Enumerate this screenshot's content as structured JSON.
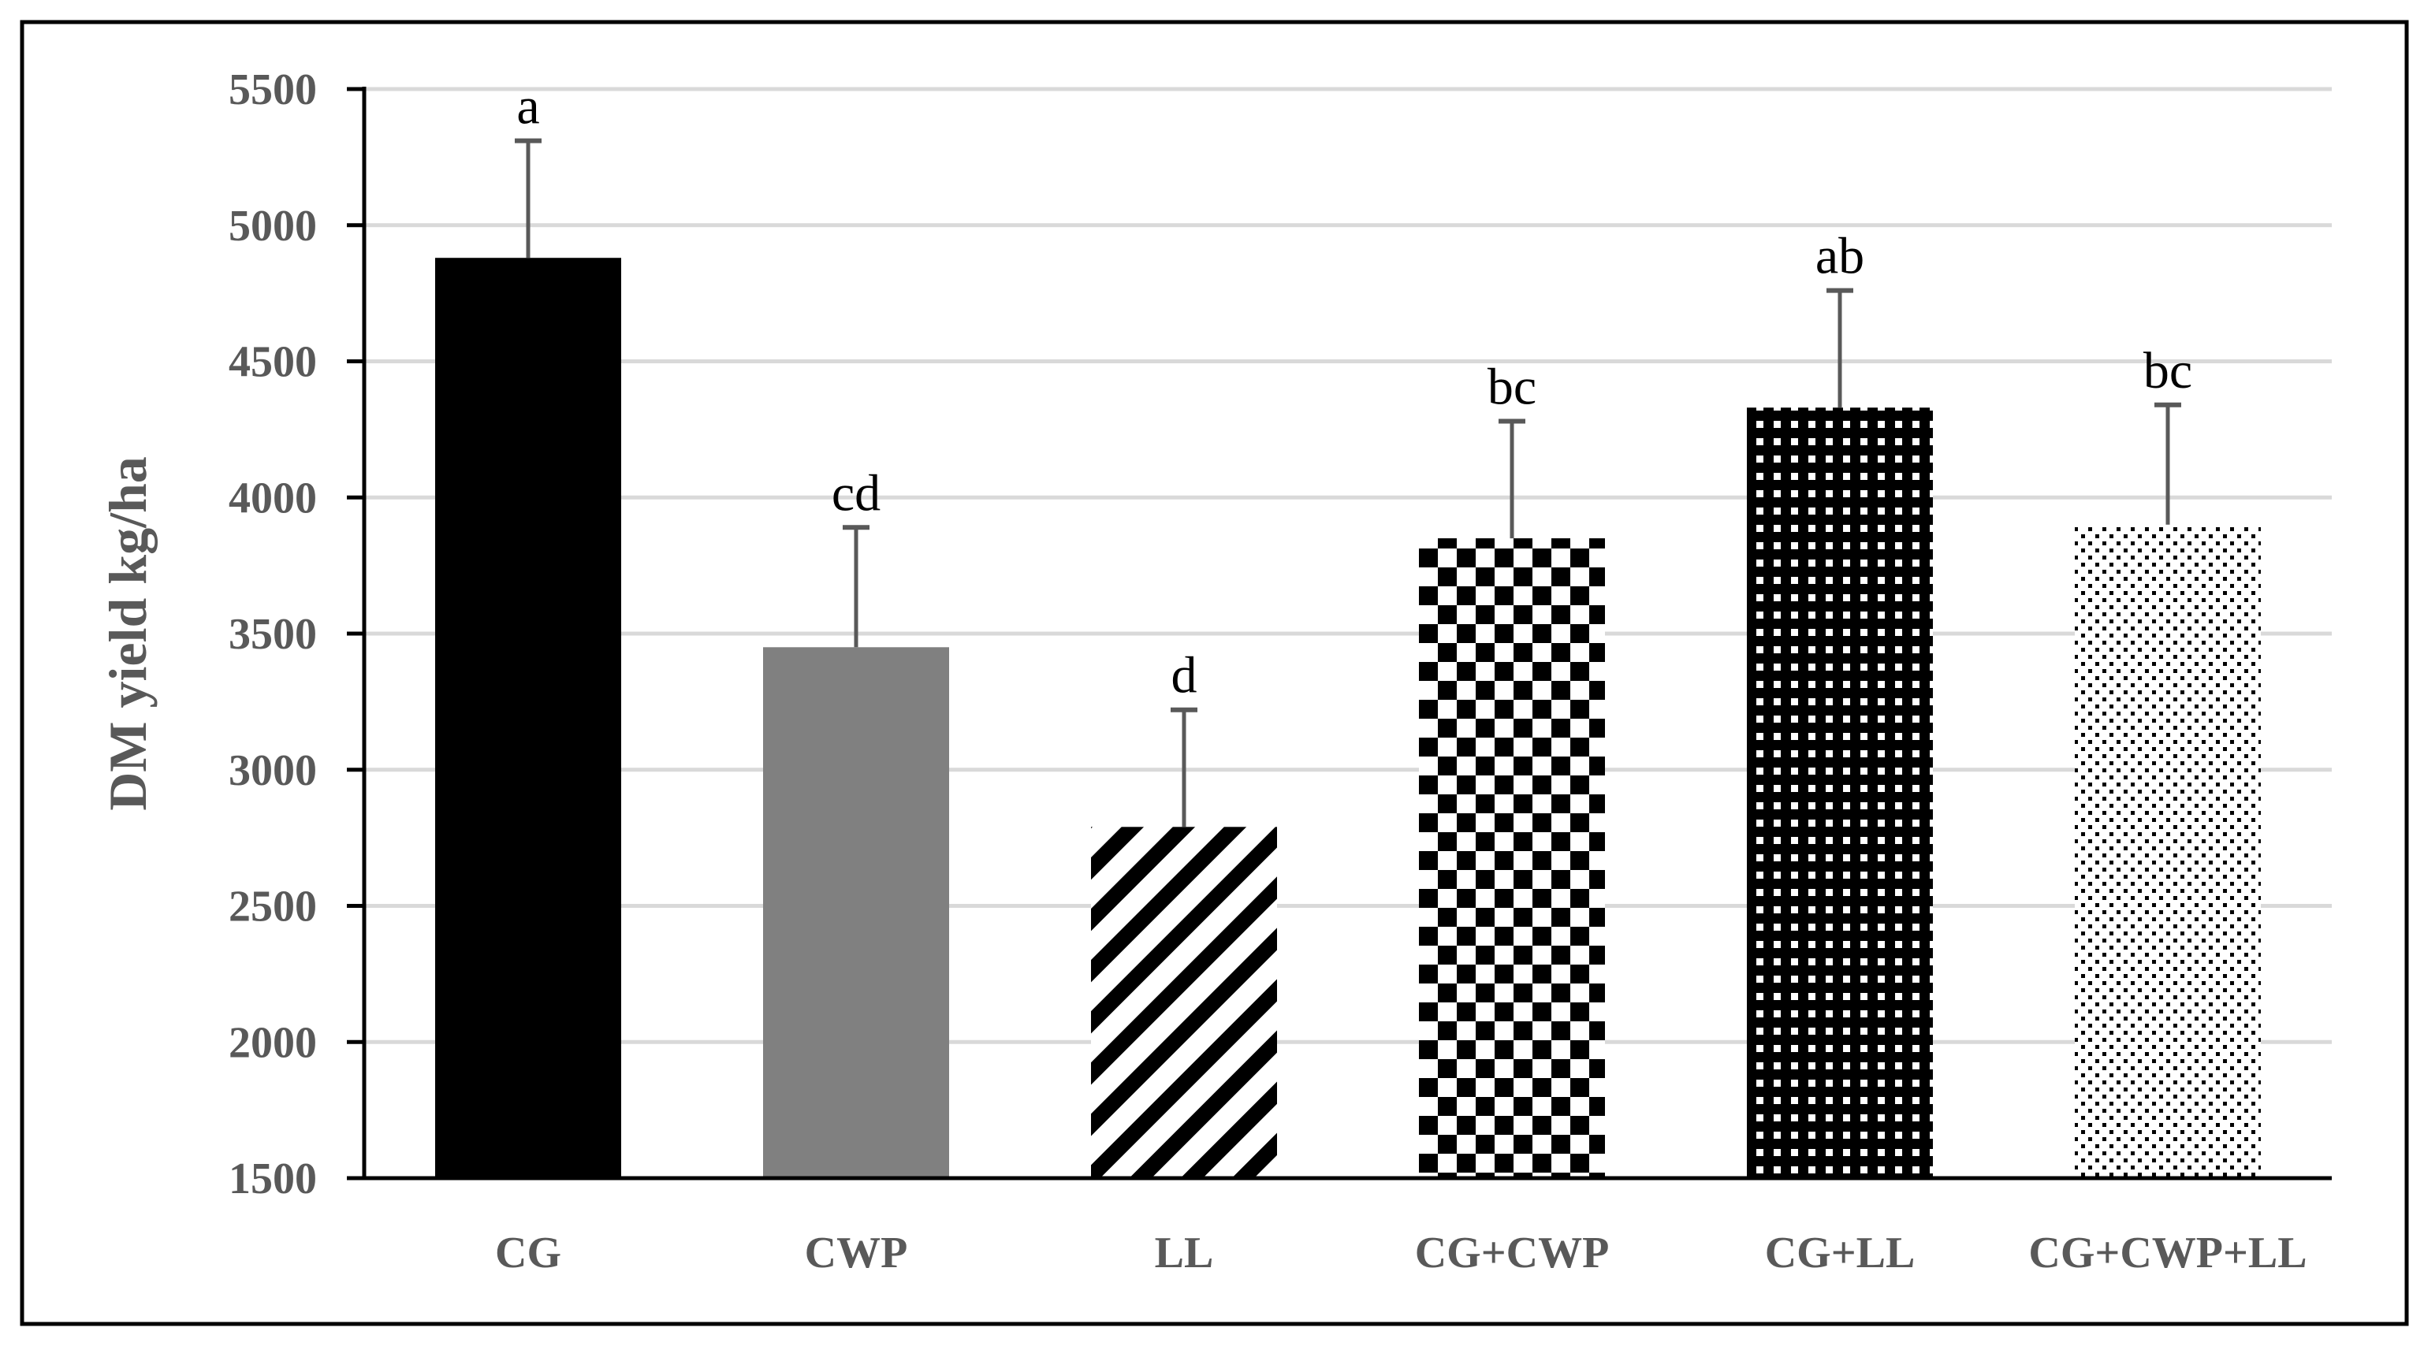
{
  "chart_data": {
    "type": "bar",
    "title": "",
    "xlabel": "",
    "ylabel": "DM yield kg/ha",
    "ylim": [
      1500,
      5500
    ],
    "yticks": [
      1500,
      2000,
      2500,
      3000,
      3500,
      4000,
      4500,
      5000,
      5500
    ],
    "grid": true,
    "categories": [
      "CG",
      "CWP",
      "LL",
      "CG+CWP",
      "CG+LL",
      "CG+CWP+LL"
    ],
    "series": [
      {
        "name": "DM yield",
        "values": [
          4880,
          3450,
          2790,
          3850,
          4330,
          3900
        ],
        "errors": [
          430,
          440,
          430,
          430,
          430,
          440
        ],
        "significance_letters": [
          "a",
          "cd",
          "d",
          "bc",
          "ab",
          "bc"
        ],
        "fills": [
          "solid-black",
          "solid-gray",
          "diagonal-stripes",
          "checkerboard",
          "white-dots-on-black",
          "fine-dots"
        ]
      }
    ],
    "colors": {
      "axis": "#000000",
      "grid": "#d9d9d9",
      "text": "#595959",
      "error_bar": "#595959",
      "solid_black": "#000000",
      "solid_gray": "#808080"
    }
  }
}
